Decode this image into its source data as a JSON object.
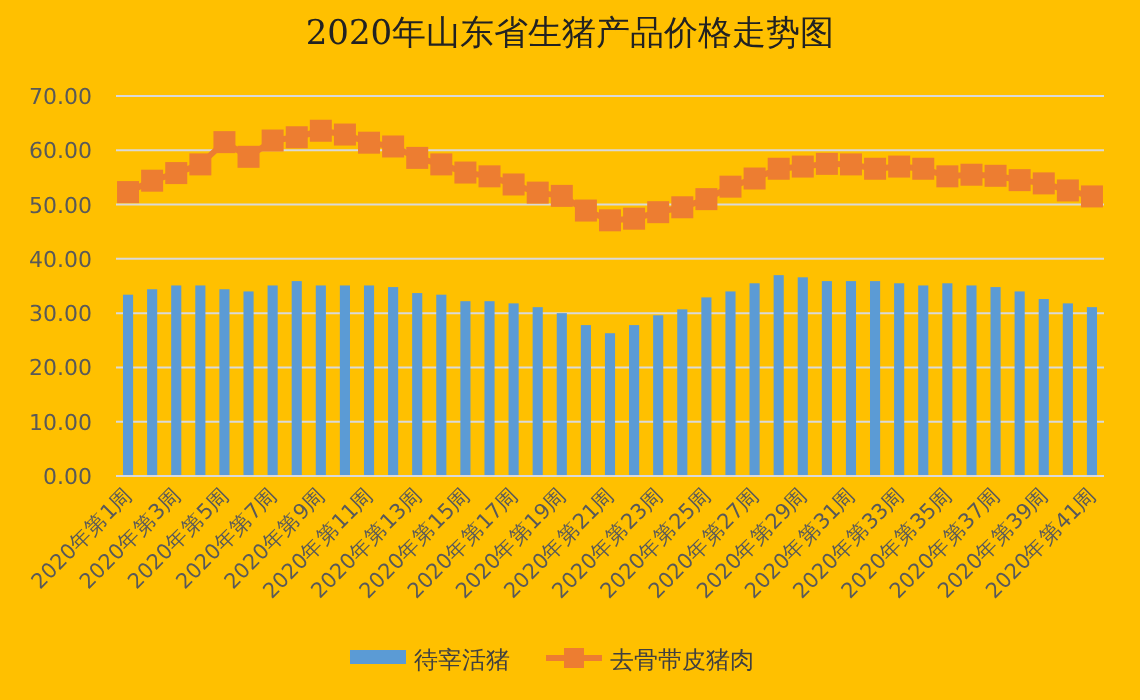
{
  "chart_data": {
    "type": "bar",
    "title": "2020年山东省生猪产品价格走势图",
    "categories": [
      "2020年第1周",
      null,
      "2020年第3周",
      null,
      "2020年第5周",
      null,
      "2020年第7周",
      null,
      "2020年第9周",
      null,
      "2020年第11周",
      null,
      "2020年第13周",
      null,
      "2020年第15周",
      null,
      "2020年第17周",
      null,
      "2020年第19周",
      null,
      "2020年第21周",
      null,
      "2020年第23周",
      null,
      "2020年第25周",
      null,
      "2020年第27周",
      null,
      "2020年第29周",
      null,
      "2020年第31周",
      null,
      "2020年第33周",
      null,
      "2020年第35周",
      null,
      "2020年第37周",
      null,
      "2020年第39周",
      null,
      "2020年第41周"
    ],
    "series": [
      {
        "name": "待宰活猪",
        "color": "#5b9bd5",
        "values": [
          33.4,
          34.4,
          35.1,
          35.1,
          34.4,
          34.0,
          35.1,
          35.9,
          35.1,
          35.1,
          35.1,
          34.8,
          33.7,
          33.4,
          32.2,
          32.2,
          31.8,
          31.1,
          30.0,
          27.8,
          26.3,
          27.8,
          29.6,
          30.7,
          32.9,
          34.0,
          35.5,
          37.0,
          36.6,
          35.9,
          35.9,
          35.9,
          35.5,
          35.1,
          35.5,
          35.1,
          34.8,
          34.0,
          32.6,
          31.8,
          31.1
        ]
      },
      {
        "name": "去骨带皮猪肉",
        "type": "line",
        "color": "#ed7d31",
        "marker": "square",
        "values": [
          52.3,
          54.4,
          55.8,
          57.4,
          61.5,
          58.8,
          61.8,
          62.4,
          63.6,
          62.9,
          61.4,
          60.7,
          58.6,
          57.4,
          55.9,
          55.2,
          53.7,
          52.2,
          51.6,
          48.9,
          47.1,
          47.4,
          48.6,
          49.5,
          51.0,
          53.3,
          54.8,
          56.6,
          57.0,
          57.5,
          57.4,
          56.6,
          57.0,
          56.6,
          55.2,
          55.5,
          55.3,
          54.5,
          53.9,
          52.6,
          51.5
        ]
      }
    ],
    "ylim": [
      0,
      70
    ],
    "yticks": [
      {
        "value": 0,
        "label": "0.00"
      },
      {
        "value": 10,
        "label": "10.00"
      },
      {
        "value": 20,
        "label": "20.00"
      },
      {
        "value": 30,
        "label": "30.00"
      },
      {
        "value": 40,
        "label": "40.00"
      },
      {
        "value": 50,
        "label": "50.00"
      },
      {
        "value": 60,
        "label": "60.00"
      },
      {
        "value": 70,
        "label": "70.00"
      }
    ],
    "grid": "y",
    "legend": "bottom"
  }
}
